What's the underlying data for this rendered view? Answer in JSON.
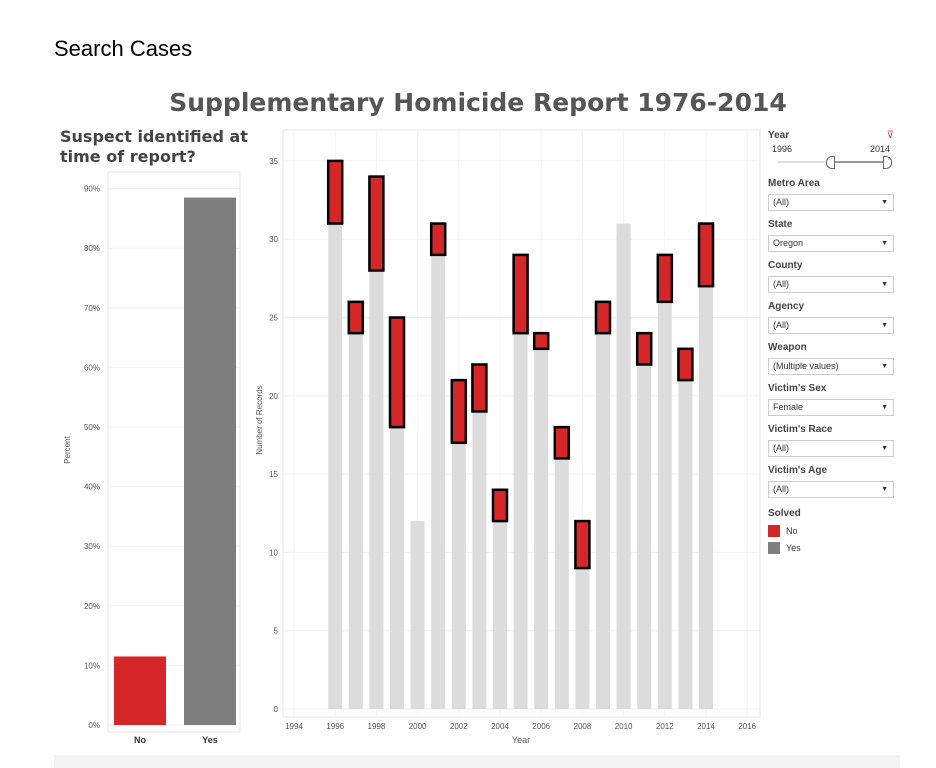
{
  "page_title": "Search Cases",
  "dashboard_title": "Supplementary Homicide Report 1976-2014",
  "colors": {
    "no": "#d62728",
    "yes": "#7f7f7f",
    "solved_bar": "#dcdcdc"
  },
  "filters": {
    "year": {
      "label": "Year",
      "min": "1996",
      "max": "2014",
      "clear_icon": "filter-clear-icon"
    },
    "dropdowns": [
      {
        "label": "Metro Area",
        "value": "(All)"
      },
      {
        "label": "State",
        "value": "Oregon"
      },
      {
        "label": "County",
        "value": "(All)"
      },
      {
        "label": "Agency",
        "value": "(All)"
      },
      {
        "label": "Weapon",
        "value": "(Multiple values)"
      },
      {
        "label": "Victim's Sex",
        "value": "Female"
      },
      {
        "label": "Victim's Race",
        "value": "(All)"
      },
      {
        "label": "Victim's Age",
        "value": "(All)"
      }
    ],
    "legend": {
      "title": "Solved",
      "items": [
        "No",
        "Yes"
      ]
    }
  },
  "chart_data": [
    {
      "type": "bar",
      "title": "Suspect identified at time of report?",
      "categories": [
        "No",
        "Yes"
      ],
      "values": [
        11.5,
        88.5
      ],
      "ylabel": "Percent",
      "ylim": [
        0,
        90
      ],
      "yticks": [
        "0%",
        "10%",
        "20%",
        "30%",
        "40%",
        "50%",
        "60%",
        "70%",
        "80%",
        "90%"
      ]
    },
    {
      "type": "bar",
      "title": "",
      "xlabel": "Year",
      "ylabel": "Number of Records",
      "ylim": [
        0,
        35
      ],
      "xlim": [
        1994,
        2016
      ],
      "xticks": [
        "1994",
        "1996",
        "1998",
        "2000",
        "2002",
        "2004",
        "2006",
        "2008",
        "2010",
        "2012",
        "2014",
        "2016"
      ],
      "yticks": [
        "0",
        "5",
        "10",
        "15",
        "20",
        "25",
        "30",
        "35"
      ],
      "x": [
        1996,
        1997,
        1998,
        1999,
        2000,
        2001,
        2002,
        2003,
        2004,
        2005,
        2006,
        2007,
        2008,
        2009,
        2010,
        2011,
        2012,
        2013,
        2014
      ],
      "series": [
        {
          "name": "Yes",
          "values": [
            31,
            24,
            28,
            18,
            12,
            29,
            17,
            19,
            12,
            24,
            23,
            16,
            9,
            24,
            31,
            22,
            26,
            21,
            27
          ]
        },
        {
          "name": "No",
          "values": [
            4,
            2,
            6,
            7,
            0,
            2,
            4,
            3,
            2,
            5,
            1,
            2,
            3,
            2,
            0,
            2,
            3,
            2,
            4
          ]
        }
      ]
    }
  ]
}
